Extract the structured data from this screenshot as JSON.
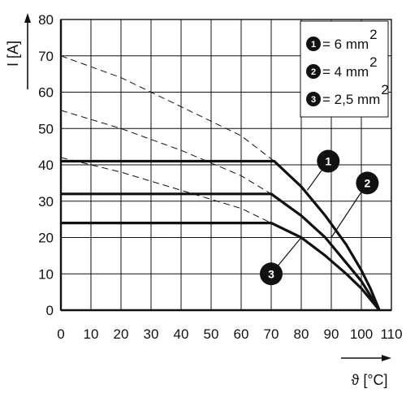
{
  "chart_data": {
    "type": "line",
    "xlabel": "ϑ [°C]",
    "ylabel": "I [A]",
    "xlim": [
      0,
      110
    ],
    "ylim": [
      0,
      80
    ],
    "x_ticks": [
      "0",
      "10",
      "20",
      "30",
      "40",
      "50",
      "60",
      "70",
      "80",
      "90",
      "100",
      "110"
    ],
    "y_ticks": [
      "0",
      "10",
      "20",
      "30",
      "40",
      "50",
      "60",
      "70",
      "80"
    ],
    "grid": true,
    "legend": {
      "placement": "top-right",
      "entries": [
        {
          "num": "1",
          "label": "= 6 mm",
          "sup": "2"
        },
        {
          "num": "2",
          "label": "= 4 mm",
          "sup": "2"
        },
        {
          "num": "3",
          "label": "= 2,5 mm",
          "sup": "2"
        }
      ]
    },
    "series": [
      {
        "marker": "1",
        "style": "solid",
        "x": [
          0,
          71,
          80,
          88,
          95,
          100,
          103,
          105,
          106
        ],
        "y": [
          41,
          41,
          34,
          26,
          18,
          11,
          6,
          2,
          0
        ]
      },
      {
        "marker": "2",
        "style": "solid",
        "x": [
          0,
          70,
          80,
          88,
          95,
          100,
          103,
          105,
          106
        ],
        "y": [
          32,
          32,
          26,
          20,
          13,
          8,
          4,
          1.5,
          0
        ]
      },
      {
        "marker": "3",
        "style": "solid",
        "x": [
          0,
          70,
          80,
          88,
          95,
          100,
          103,
          105,
          106
        ],
        "y": [
          24,
          24,
          20,
          15,
          10,
          6,
          3,
          1,
          0
        ]
      },
      {
        "marker": "1",
        "style": "dashed",
        "x": [
          0,
          20,
          40,
          60,
          71
        ],
        "y": [
          70,
          64,
          56,
          48,
          41
        ]
      },
      {
        "marker": "2",
        "style": "dashed",
        "x": [
          0,
          20,
          40,
          60,
          70
        ],
        "y": [
          55,
          50,
          44,
          37,
          32
        ]
      },
      {
        "marker": "3",
        "style": "dashed",
        "x": [
          0,
          20,
          40,
          60,
          70
        ],
        "y": [
          42,
          38,
          33,
          28,
          24
        ]
      }
    ],
    "annotations": [
      {
        "text": "1",
        "at_x": 89,
        "at_y": 41,
        "points_to": [
          82,
          33
        ]
      },
      {
        "text": "2",
        "at_x": 102,
        "at_y": 35,
        "points_to": [
          90,
          20
        ]
      },
      {
        "text": "3",
        "at_x": 70,
        "at_y": 10,
        "points_to": [
          80,
          20
        ]
      }
    ]
  }
}
